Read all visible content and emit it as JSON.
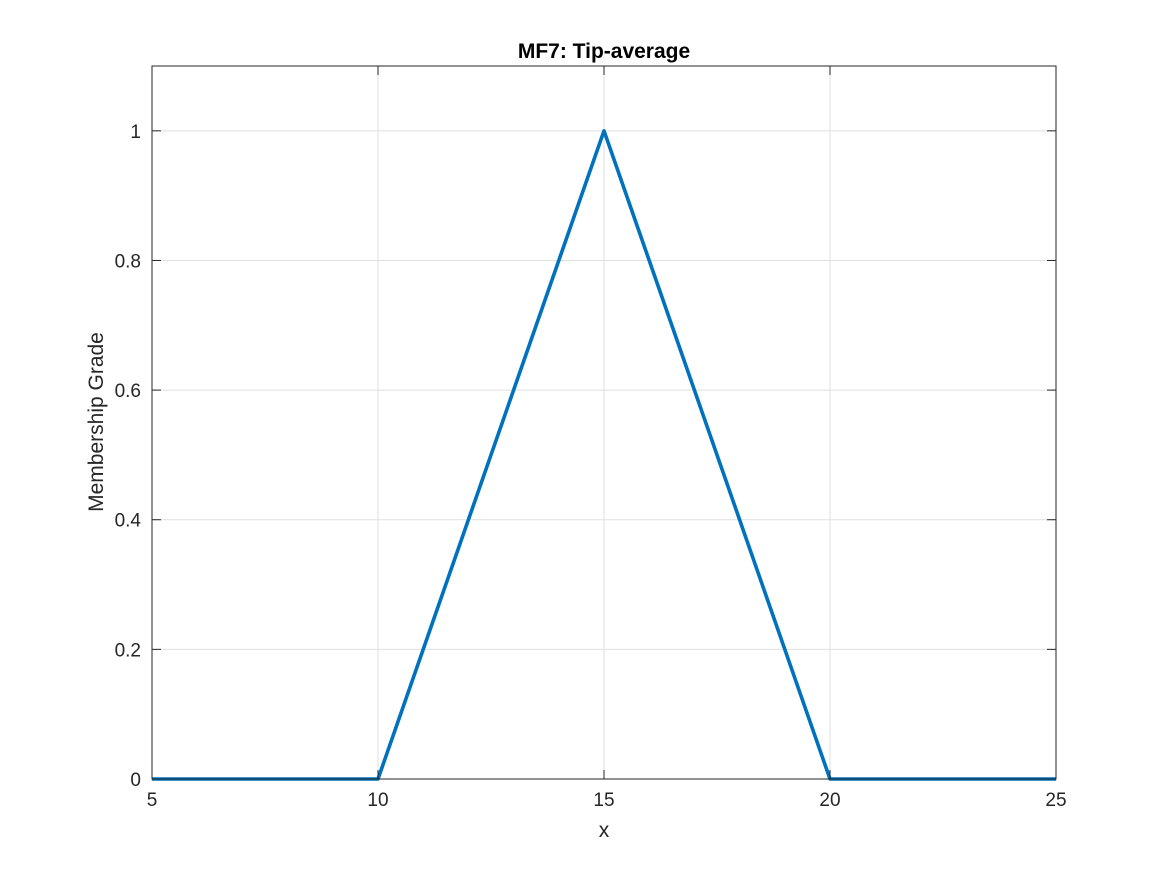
{
  "chart_data": {
    "type": "line",
    "title": "MF7: Tip-average",
    "xlabel": "x",
    "ylabel": "Membership Grade",
    "xlim": [
      5,
      25
    ],
    "ylim": [
      0,
      1.1
    ],
    "xticks": [
      5,
      10,
      15,
      20,
      25
    ],
    "xtick_labels": [
      "5",
      "10",
      "15",
      "20",
      "25"
    ],
    "yticks": [
      0,
      0.2,
      0.4,
      0.6,
      0.8,
      1
    ],
    "ytick_labels": [
      "0",
      "0.2",
      "0.4",
      "0.6",
      "0.8",
      "1"
    ],
    "grid": true,
    "series": [
      {
        "x": [
          5,
          10,
          15,
          20,
          25
        ],
        "y": [
          0,
          0,
          1,
          0,
          0
        ],
        "color": "#0072BD"
      }
    ]
  }
}
